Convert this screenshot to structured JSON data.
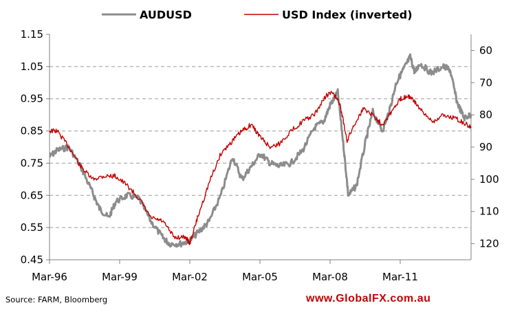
{
  "chart_data": {
    "type": "line",
    "title": "",
    "xlabel": "",
    "ylabel": "",
    "x_tick_labels": [
      "Mar-96",
      "Mar-99",
      "Mar-02",
      "Mar-05",
      "Mar-08",
      "Mar-11"
    ],
    "x_tick_years": [
      1996.17,
      1999.17,
      2002.17,
      2005.17,
      2008.17,
      2011.17
    ],
    "x_range": [
      1996.17,
      2014.2
    ],
    "left_axis": {
      "ticks": [
        "1.15",
        "1.05",
        "0.95",
        "0.85",
        "0.75",
        "0.65",
        "0.55",
        "0.45"
      ],
      "ylim": [
        0.45,
        1.15
      ]
    },
    "right_axis": {
      "ticks": [
        "60",
        "70",
        "80",
        "90",
        "100",
        "110",
        "120"
      ],
      "ylim": [
        125,
        55
      ],
      "inverted": true
    },
    "grid": "horizontal-dashed",
    "legend_position": "top",
    "series": [
      {
        "name": "AUDUSD",
        "axis": "left",
        "color": "#8c8c8c",
        "x": [
          1996.17,
          1996.5,
          1997.0,
          1997.5,
          1998.0,
          1998.3,
          1998.7,
          1999.0,
          1999.5,
          2000.0,
          2000.5,
          2001.0,
          2001.3,
          2001.8,
          2002.17,
          2002.6,
          2003.0,
          2003.5,
          2004.0,
          2004.4,
          2004.8,
          2005.2,
          2005.6,
          2006.0,
          2006.5,
          2007.0,
          2007.5,
          2007.9,
          2008.17,
          2008.5,
          2008.75,
          2008.95,
          2009.3,
          2009.7,
          2010.0,
          2010.4,
          2010.7,
          2011.0,
          2011.3,
          2011.6,
          2011.8,
          2012.0,
          2012.5,
          2013.0,
          2013.3,
          2013.6,
          2013.9,
          2014.2
        ],
        "values": [
          0.77,
          0.79,
          0.8,
          0.74,
          0.66,
          0.61,
          0.58,
          0.63,
          0.65,
          0.64,
          0.57,
          0.52,
          0.5,
          0.5,
          0.51,
          0.54,
          0.57,
          0.65,
          0.77,
          0.7,
          0.74,
          0.78,
          0.75,
          0.74,
          0.75,
          0.79,
          0.86,
          0.88,
          0.93,
          0.97,
          0.8,
          0.65,
          0.68,
          0.82,
          0.91,
          0.85,
          0.91,
          1.0,
          1.04,
          1.08,
          1.03,
          1.06,
          1.03,
          1.05,
          1.04,
          0.94,
          0.89,
          0.9
        ]
      },
      {
        "name": "USD Index (inverted)",
        "axis": "right",
        "color": "#c00000",
        "x": [
          1996.17,
          1996.5,
          1997.0,
          1997.5,
          1998.0,
          1998.5,
          1999.0,
          1999.5,
          2000.0,
          2000.5,
          2001.0,
          2001.5,
          2002.0,
          2002.17,
          2002.5,
          2003.0,
          2003.5,
          2004.0,
          2004.4,
          2004.8,
          2005.2,
          2005.6,
          2006.0,
          2006.5,
          2007.0,
          2007.5,
          2008.0,
          2008.3,
          2008.6,
          2008.9,
          2009.2,
          2009.6,
          2010.0,
          2010.4,
          2010.8,
          2011.2,
          2011.5,
          2011.8,
          2012.2,
          2012.6,
          2013.0,
          2013.5,
          2014.0,
          2014.2
        ],
        "values": [
          85,
          85,
          90,
          96,
          100,
          99,
          99,
          102,
          106,
          112,
          113,
          118,
          118,
          120,
          112,
          101,
          92,
          88,
          85,
          83,
          87,
          90,
          89,
          85,
          82,
          80,
          74,
          73,
          77,
          88,
          83,
          78,
          80,
          83,
          79,
          75,
          74,
          76,
          80,
          82,
          80,
          81,
          83,
          84
        ]
      }
    ]
  },
  "footer": {
    "source": "Source: FARM, Bloomberg",
    "url": "www.GlobalFX.com.au"
  }
}
